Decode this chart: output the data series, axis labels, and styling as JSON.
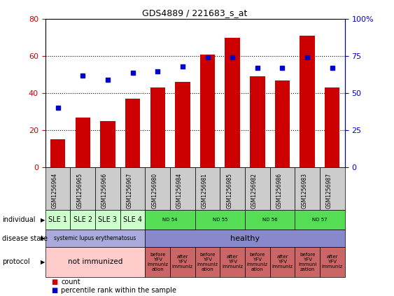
{
  "title": "GDS4889 / 221683_s_at",
  "samples": [
    "GSM1256964",
    "GSM1256965",
    "GSM1256966",
    "GSM1256967",
    "GSM1256980",
    "GSM1256984",
    "GSM1256981",
    "GSM1256985",
    "GSM1256982",
    "GSM1256986",
    "GSM1256983",
    "GSM1256987"
  ],
  "counts": [
    15,
    27,
    25,
    37,
    43,
    46,
    61,
    70,
    49,
    47,
    71,
    43
  ],
  "percentiles": [
    40,
    62,
    59,
    64,
    65,
    68,
    74,
    74,
    67,
    67,
    74,
    67
  ],
  "ylim_left": [
    0,
    80
  ],
  "ylim_right": [
    0,
    100
  ],
  "yticks_left": [
    0,
    20,
    40,
    60,
    80
  ],
  "yticks_right": [
    0,
    25,
    50,
    75,
    100
  ],
  "bar_color": "#cc0000",
  "dot_color": "#0000cc",
  "individual_groups": [
    {
      "label": "SLE 1",
      "start": 0,
      "end": 1,
      "color": "#ccffcc"
    },
    {
      "label": "SLE 2",
      "start": 1,
      "end": 2,
      "color": "#ccffcc"
    },
    {
      "label": "SLE 3",
      "start": 2,
      "end": 3,
      "color": "#ccffcc"
    },
    {
      "label": "SLE 4",
      "start": 3,
      "end": 4,
      "color": "#ccffcc"
    },
    {
      "label": "ND 54",
      "start": 4,
      "end": 6,
      "color": "#55dd55"
    },
    {
      "label": "ND 55",
      "start": 6,
      "end": 8,
      "color": "#55dd55"
    },
    {
      "label": "ND 56",
      "start": 8,
      "end": 10,
      "color": "#55dd55"
    },
    {
      "label": "ND 57",
      "start": 10,
      "end": 12,
      "color": "#55dd55"
    }
  ],
  "disease_groups": [
    {
      "label": "systemic lupus erythematosus",
      "start": 0,
      "end": 4,
      "color": "#aaaadd"
    },
    {
      "label": "healthy",
      "start": 4,
      "end": 12,
      "color": "#8888cc"
    }
  ],
  "protocol_groups": [
    {
      "label": "not immunized",
      "start": 0,
      "end": 4,
      "color": "#ffcccc"
    },
    {
      "label": "before\nYFV\nimmuniz\nation",
      "start": 4,
      "end": 5,
      "color": "#cc6666"
    },
    {
      "label": "after\nYFV\nimmuniz",
      "start": 5,
      "end": 6,
      "color": "#cc6666"
    },
    {
      "label": "before\nYFV\nimmuniz\nation",
      "start": 6,
      "end": 7,
      "color": "#cc6666"
    },
    {
      "label": "after\nYFV\nimmuniz",
      "start": 7,
      "end": 8,
      "color": "#cc6666"
    },
    {
      "label": "before\nYFV\nimmuniz\nation",
      "start": 8,
      "end": 9,
      "color": "#cc6666"
    },
    {
      "label": "after\nYFV\nimmuniz",
      "start": 9,
      "end": 10,
      "color": "#cc6666"
    },
    {
      "label": "before\nYFV\nimmuni\nzation",
      "start": 10,
      "end": 11,
      "color": "#cc6666"
    },
    {
      "label": "after\nYFV\nimmuniz",
      "start": 11,
      "end": 12,
      "color": "#cc6666"
    }
  ],
  "row_labels": [
    "individual",
    "disease state",
    "protocol"
  ],
  "legend_count_label": "count",
  "legend_pct_label": "percentile rank within the sample",
  "xtick_bg_color": "#cccccc"
}
